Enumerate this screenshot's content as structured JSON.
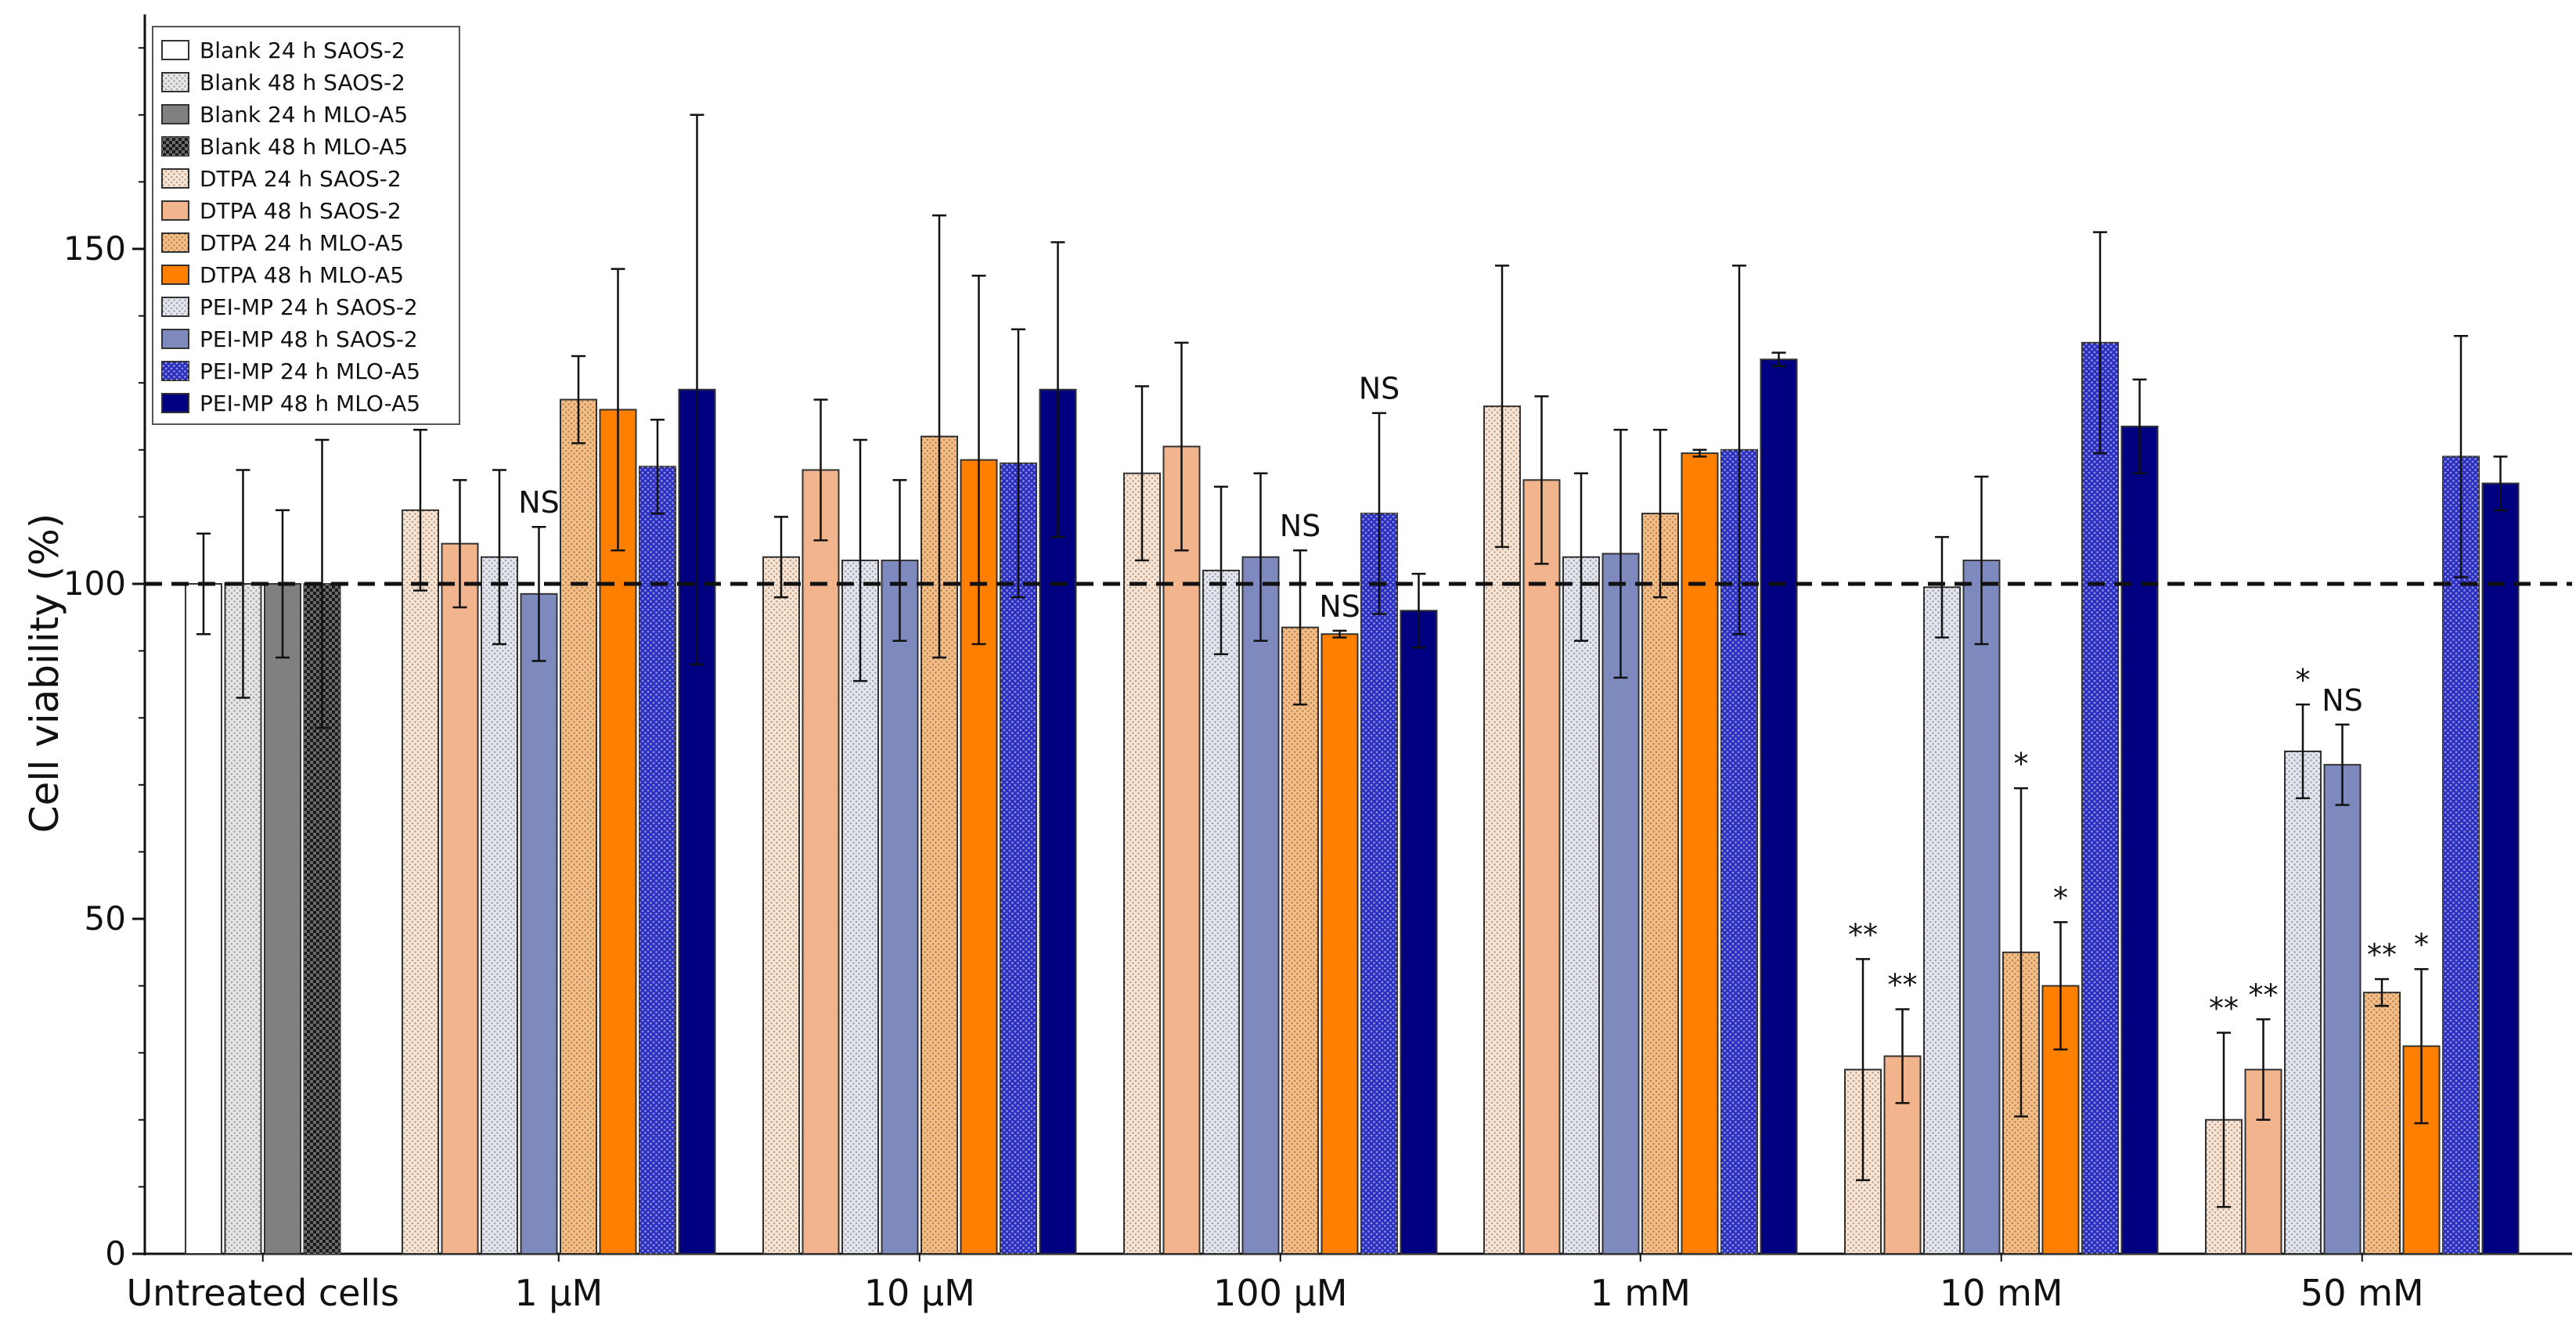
{
  "chart_data": {
    "type": "bar",
    "ylabel": "Cell viability (%)",
    "xlabel": "",
    "ylim": [
      0,
      185
    ],
    "yticks": [
      0,
      50,
      100,
      150
    ],
    "reference_line": 100,
    "legend_position": "top-left",
    "series": [
      {
        "name": "Blank 24 h SAOS-2",
        "color": "#ffffff",
        "pattern": "none"
      },
      {
        "name": "Blank 48 h SAOS-2",
        "color": "#e6e6e6",
        "pattern": "dots"
      },
      {
        "name": "Blank 24 h MLO-A5",
        "color": "#808080",
        "pattern": "none"
      },
      {
        "name": "Blank 48 h MLO-A5",
        "color": "#1a1a1a",
        "pattern": "checker"
      },
      {
        "name": "DTPA 24 h SAOS-2",
        "color": "#fbe4d2",
        "pattern": "dots"
      },
      {
        "name": "DTPA 48 h SAOS-2",
        "color": "#f1b48c",
        "pattern": "none"
      },
      {
        "name": "DTPA 24 h MLO-A5",
        "color": "#f6bd84",
        "pattern": "dots"
      },
      {
        "name": "DTPA 48 h MLO-A5",
        "color": "#ff7f00",
        "pattern": "none"
      },
      {
        "name": "PEI-MP 24 h SAOS-2",
        "color": "#e3e5ef",
        "pattern": "dots"
      },
      {
        "name": "PEI-MP 48 h SAOS-2",
        "color": "#7e89bd",
        "pattern": "none"
      },
      {
        "name": "PEI-MP 24 h MLO-A5",
        "color": "#2a2fc0",
        "pattern": "dots"
      },
      {
        "name": "PEI-MP 48 h MLO-A5",
        "color": "#000080",
        "pattern": "none"
      }
    ],
    "groups": [
      {
        "label": "Untreated cells",
        "bars": [
          {
            "series": 0,
            "value": 100,
            "err": 7.5
          },
          {
            "series": 1,
            "value": 100,
            "err": 17
          },
          {
            "series": 2,
            "value": 100,
            "err": 11
          },
          {
            "series": 3,
            "value": 100,
            "err": 21.5
          }
        ]
      },
      {
        "label": "1 μM",
        "bars": [
          {
            "series": 4,
            "value": 111,
            "err": 12
          },
          {
            "series": 5,
            "value": 106,
            "err": 9.5
          },
          {
            "series": 8,
            "value": 104,
            "err": 13
          },
          {
            "series": 9,
            "value": 98.5,
            "err": 10
          },
          {
            "series": 6,
            "value": 127.5,
            "err": 6.5
          },
          {
            "series": 7,
            "value": 126,
            "err": 21
          },
          {
            "series": 10,
            "value": 117.5,
            "err": 7
          },
          {
            "series": 11,
            "value": 129,
            "err": 41
          }
        ]
      },
      {
        "label": "10 μM",
        "bars": [
          {
            "series": 4,
            "value": 104,
            "err": 6
          },
          {
            "series": 5,
            "value": 117,
            "err": 10.5
          },
          {
            "series": 8,
            "value": 103.5,
            "err": 18
          },
          {
            "series": 9,
            "value": 103.5,
            "err": 12
          },
          {
            "series": 6,
            "value": 122,
            "err": 33
          },
          {
            "series": 7,
            "value": 118.5,
            "err": 27.5
          },
          {
            "series": 10,
            "value": 118,
            "err": 20
          },
          {
            "series": 11,
            "value": 129,
            "err": 22
          }
        ]
      },
      {
        "label": "100 μM",
        "bars": [
          {
            "series": 4,
            "value": 116.5,
            "err": 13
          },
          {
            "series": 5,
            "value": 120.5,
            "err": 15.5
          },
          {
            "series": 8,
            "value": 102,
            "err": 12.5
          },
          {
            "series": 9,
            "value": 104,
            "err": 12.5
          },
          {
            "series": 6,
            "value": 93.5,
            "err": 11.5
          },
          {
            "series": 7,
            "value": 92.5,
            "err": 0.5
          },
          {
            "series": 10,
            "value": 110.5,
            "err": 15
          },
          {
            "series": 11,
            "value": 96,
            "err": 5.5
          }
        ]
      },
      {
        "label": "1 mM",
        "bars": [
          {
            "series": 4,
            "value": 126.5,
            "err": 21
          },
          {
            "series": 5,
            "value": 115.5,
            "err": 12.5
          },
          {
            "series": 8,
            "value": 104,
            "err": 12.5
          },
          {
            "series": 9,
            "value": 104.5,
            "err": 18.5
          },
          {
            "series": 6,
            "value": 110.5,
            "err": 12.5
          },
          {
            "series": 7,
            "value": 119.5,
            "err": 0.5
          },
          {
            "series": 10,
            "value": 120,
            "err": 27.5
          },
          {
            "series": 11,
            "value": 133.5,
            "err": 1
          }
        ]
      },
      {
        "label": "10 mM",
        "bars": [
          {
            "series": 4,
            "value": 27.5,
            "err": 16.5
          },
          {
            "series": 5,
            "value": 29.5,
            "err": 7
          },
          {
            "series": 8,
            "value": 99.5,
            "err": 7.5
          },
          {
            "series": 9,
            "value": 103.5,
            "err": 12.5
          },
          {
            "series": 6,
            "value": 45,
            "err": 24.5
          },
          {
            "series": 7,
            "value": 40,
            "err": 9.5
          },
          {
            "series": 10,
            "value": 136,
            "err": 16.5
          },
          {
            "series": 11,
            "value": 123.5,
            "err": 7
          }
        ]
      },
      {
        "label": "50 mM",
        "bars": [
          {
            "series": 4,
            "value": 20,
            "err": 13
          },
          {
            "series": 5,
            "value": 27.5,
            "err": 7.5
          },
          {
            "series": 8,
            "value": 75,
            "err": 7
          },
          {
            "series": 9,
            "value": 73,
            "err": 6
          },
          {
            "series": 6,
            "value": 39,
            "err": 2
          },
          {
            "series": 7,
            "value": 31,
            "err": 11.5
          },
          {
            "series": 10,
            "value": 119,
            "err": 18
          },
          {
            "series": 11,
            "value": 115,
            "err": 4
          }
        ]
      }
    ],
    "annotations": [
      {
        "text": "NS",
        "group": 1,
        "bar": 3
      },
      {
        "text": "NS",
        "group": 3,
        "bar": 4
      },
      {
        "text": "NS",
        "group": 3,
        "bar": 5
      },
      {
        "text": "NS",
        "group": 3,
        "bar": 6
      },
      {
        "text": "**",
        "group": 5,
        "bar": 0
      },
      {
        "text": "**",
        "group": 5,
        "bar": 1
      },
      {
        "text": "*",
        "group": 5,
        "bar": 4
      },
      {
        "text": "*",
        "group": 5,
        "bar": 5
      },
      {
        "text": "**",
        "group": 6,
        "bar": 0
      },
      {
        "text": "**",
        "group": 6,
        "bar": 1
      },
      {
        "text": "*",
        "group": 6,
        "bar": 2
      },
      {
        "text": "NS",
        "group": 6,
        "bar": 3
      },
      {
        "text": "**",
        "group": 6,
        "bar": 4
      },
      {
        "text": "*",
        "group": 6,
        "bar": 5
      }
    ]
  }
}
